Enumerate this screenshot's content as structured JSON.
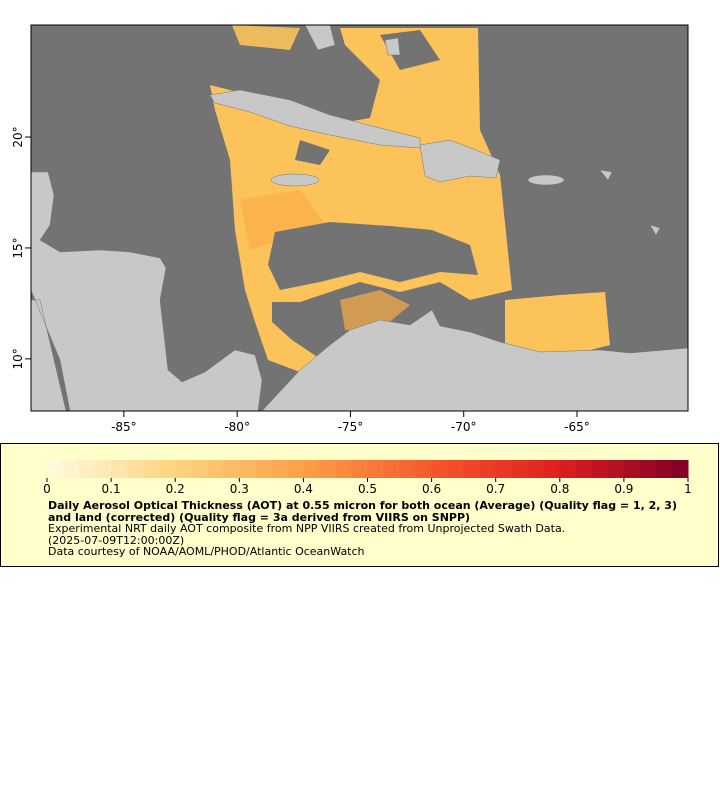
{
  "map": {
    "xlim": [
      -89.1,
      -60.1
    ],
    "ylim": [
      7.65,
      25.05
    ],
    "xticks": [
      {
        "value": -85,
        "label": "-85°"
      },
      {
        "value": -80,
        "label": "-80°"
      },
      {
        "value": -75,
        "label": "-75°"
      },
      {
        "value": -70,
        "label": "-70°"
      },
      {
        "value": -65,
        "label": "-65°"
      }
    ],
    "yticks": [
      {
        "value": 10,
        "label": "10°"
      },
      {
        "value": 15,
        "label": "15°"
      },
      {
        "value": 20,
        "label": "20°"
      }
    ]
  },
  "legend": {
    "colorbar": {
      "range": [
        0,
        1
      ],
      "ticks": [
        0,
        0.1,
        0.2,
        0.3,
        0.4,
        0.5,
        0.6,
        0.7,
        0.8,
        0.9,
        1
      ],
      "colors": [
        "#fffbe0",
        "#fdd480",
        "#fca048",
        "#f4582d",
        "#dc1f20",
        "#800026"
      ]
    },
    "title": "Daily Aerosol Optical Thickness (AOT) at 0.55 micron for both ocean (Average) (Quality flag = 1, 2, 3) and land (corrected) (Quality flag = 3a derived from VIIRS on SNPP)",
    "lines": [
      "Experimental NRT daily AOT composite from NPP VIIRS created from Unprojected Swath Data.",
      "(2025-07-09T12:00:00Z)",
      "Data courtesy of NOAA/AOML/PHOD/Atlantic OceanWatch"
    ]
  }
}
